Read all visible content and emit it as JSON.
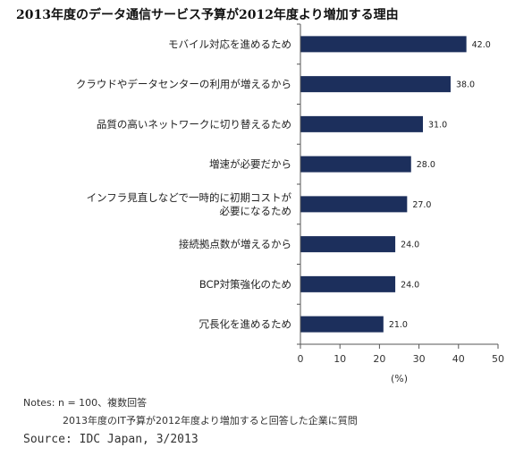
{
  "chart_data": {
    "type": "bar",
    "orientation": "horizontal",
    "title": "2013年度のデータ通信サービス予算が2012年度より増加する理由",
    "categories": [
      [
        "モバイル対応を進めるため"
      ],
      [
        "クラウドやデータセンターの利用が増えるから"
      ],
      [
        "品質の高いネットワークに切り替えるため"
      ],
      [
        "増速が必要だから"
      ],
      [
        "インフラ見直しなどで一時的に初期コストが",
        "必要になるため"
      ],
      [
        "接続拠点数が増えるから"
      ],
      [
        "BCP対策強化のため"
      ],
      [
        "冗長化を進めるため"
      ]
    ],
    "values": [
      42.0,
      38.0,
      31.0,
      28.0,
      27.0,
      24.0,
      24.0,
      21.0
    ],
    "value_labels": [
      "42.0",
      "38.0",
      "31.0",
      "28.0",
      "27.0",
      "24.0",
      "24.0",
      "21.0"
    ],
    "xlim": [
      0,
      50
    ],
    "xticks": [
      0,
      10,
      20,
      30,
      40,
      50
    ],
    "xlabel": "(%)",
    "bar_color": "#1c2f5c",
    "grid": false,
    "legend": false
  },
  "notes": {
    "line1": "Notes:  n = 100、複数回答",
    "line2": "2013年度のIT予算が2012年度より増加すると回答した企業に質問"
  },
  "source": "Source: IDC Japan, 3/2013"
}
